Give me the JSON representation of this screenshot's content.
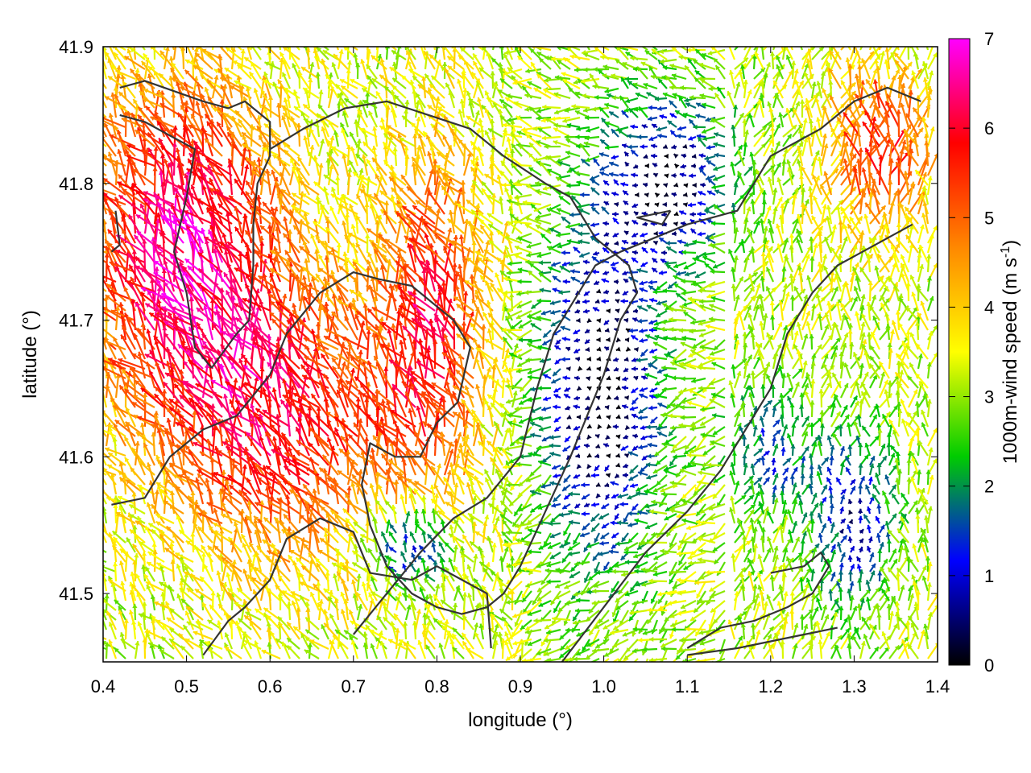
{
  "chart_data": {
    "type": "vector-field",
    "title": "",
    "xlabel": "longitude (°)",
    "ylabel": "latitude (°)",
    "xlim": [
      0.4,
      1.4
    ],
    "ylim": [
      41.45,
      41.9
    ],
    "xticks": [
      "0.4",
      "0.5",
      "0.6",
      "0.7",
      "0.8",
      "0.9",
      "1.0",
      "1.1",
      "1.2",
      "1.3",
      "1.4"
    ],
    "yticks": [
      "41.5",
      "41.6",
      "41.7",
      "41.8",
      "41.9"
    ],
    "colorbar": {
      "label": "1000m-wind speed (m s",
      "label_exponent": "-1",
      "label_close": ")",
      "range": [
        0,
        7
      ],
      "ticks": [
        "0",
        "1",
        "2",
        "3",
        "4",
        "5",
        "6",
        "7"
      ],
      "palette": [
        "#000000",
        "#0000ff",
        "#00cc00",
        "#ffff00",
        "#ff8800",
        "#ff0000",
        "#ff00ff"
      ]
    },
    "grid": false,
    "legend": "none",
    "contours": [
      [
        [
          0.53,
          41.665
        ],
        [
          0.51,
          41.68
        ],
        [
          0.5,
          41.72
        ],
        [
          0.485,
          41.75
        ],
        [
          0.5,
          41.79
        ],
        [
          0.51,
          41.825
        ],
        [
          0.45,
          41.845
        ],
        [
          0.42,
          41.85
        ]
      ],
      [
        [
          0.53,
          41.665
        ],
        [
          0.56,
          41.69
        ],
        [
          0.575,
          41.7
        ],
        [
          0.58,
          41.74
        ],
        [
          0.58,
          41.77
        ],
        [
          0.585,
          41.8
        ],
        [
          0.6,
          41.82
        ],
        [
          0.6,
          41.845
        ],
        [
          0.57,
          41.86
        ],
        [
          0.55,
          41.855
        ],
        [
          0.52,
          41.86
        ],
        [
          0.45,
          41.875
        ],
        [
          0.42,
          41.87
        ]
      ],
      [
        [
          0.41,
          41.75
        ],
        [
          0.42,
          41.755
        ],
        [
          0.415,
          41.78
        ]
      ],
      [
        [
          0.52,
          41.455
        ],
        [
          0.55,
          41.48
        ],
        [
          0.57,
          41.49
        ],
        [
          0.6,
          41.51
        ],
        [
          0.62,
          41.54
        ],
        [
          0.66,
          41.555
        ],
        [
          0.7,
          41.545
        ],
        [
          0.72,
          41.515
        ],
        [
          0.77,
          41.51
        ],
        [
          0.8,
          41.52
        ],
        [
          0.83,
          41.51
        ],
        [
          0.86,
          41.5
        ],
        [
          0.865,
          41.46
        ]
      ],
      [
        [
          0.41,
          41.565
        ],
        [
          0.45,
          41.57
        ],
        [
          0.48,
          41.6
        ],
        [
          0.52,
          41.62
        ],
        [
          0.56,
          41.63
        ],
        [
          0.6,
          41.66
        ],
        [
          0.62,
          41.69
        ],
        [
          0.66,
          41.72
        ],
        [
          0.7,
          41.735
        ],
        [
          0.73,
          41.73
        ],
        [
          0.77,
          41.725
        ],
        [
          0.82,
          41.7
        ],
        [
          0.84,
          41.68
        ],
        [
          0.825,
          41.64
        ],
        [
          0.8,
          41.625
        ],
        [
          0.78,
          41.6
        ],
        [
          0.75,
          41.6
        ],
        [
          0.72,
          41.61
        ],
        [
          0.71,
          41.58
        ],
        [
          0.72,
          41.55
        ],
        [
          0.74,
          41.52
        ],
        [
          0.77,
          41.5
        ],
        [
          0.8,
          41.49
        ],
        [
          0.83,
          41.485
        ],
        [
          0.86,
          41.49
        ],
        [
          0.88,
          41.5
        ],
        [
          0.9,
          41.52
        ],
        [
          0.93,
          41.56
        ],
        [
          0.96,
          41.6
        ],
        [
          0.98,
          41.63
        ],
        [
          1.0,
          41.66
        ],
        [
          1.02,
          41.7
        ],
        [
          1.04,
          41.72
        ],
        [
          1.03,
          41.74
        ],
        [
          0.99,
          41.76
        ],
        [
          0.96,
          41.79
        ],
        [
          0.93,
          41.8
        ],
        [
          0.88,
          41.82
        ],
        [
          0.84,
          41.84
        ],
        [
          0.79,
          41.85
        ],
        [
          0.74,
          41.86
        ],
        [
          0.69,
          41.855
        ],
        [
          0.64,
          41.84
        ],
        [
          0.6,
          41.825
        ]
      ],
      [
        [
          0.7,
          41.47
        ],
        [
          0.74,
          41.5
        ],
        [
          0.78,
          41.53
        ],
        [
          0.82,
          41.555
        ],
        [
          0.86,
          41.57
        ],
        [
          0.9,
          41.6
        ],
        [
          0.92,
          41.65
        ],
        [
          0.94,
          41.69
        ],
        [
          0.97,
          41.72
        ],
        [
          0.99,
          41.74
        ],
        [
          1.02,
          41.75
        ],
        [
          1.06,
          41.76
        ],
        [
          1.1,
          41.77
        ],
        [
          1.13,
          41.775
        ],
        [
          1.16,
          41.78
        ],
        [
          1.18,
          41.8
        ],
        [
          1.2,
          41.82
        ],
        [
          1.23,
          41.83
        ],
        [
          1.26,
          41.84
        ],
        [
          1.3,
          41.86
        ],
        [
          1.34,
          41.87
        ],
        [
          1.38,
          41.86
        ]
      ],
      [
        [
          0.95,
          41.45
        ],
        [
          1.0,
          41.49
        ],
        [
          1.05,
          41.53
        ],
        [
          1.1,
          41.56
        ],
        [
          1.14,
          41.59
        ],
        [
          1.17,
          41.62
        ],
        [
          1.2,
          41.65
        ],
        [
          1.22,
          41.69
        ],
        [
          1.25,
          41.72
        ],
        [
          1.28,
          41.74
        ],
        [
          1.31,
          41.75
        ],
        [
          1.34,
          41.76
        ],
        [
          1.37,
          41.77
        ]
      ],
      [
        [
          1.1,
          41.46
        ],
        [
          1.14,
          41.475
        ],
        [
          1.18,
          41.48
        ],
        [
          1.22,
          41.49
        ],
        [
          1.25,
          41.5
        ],
        [
          1.27,
          41.52
        ],
        [
          1.26,
          41.53
        ],
        [
          1.24,
          41.52
        ],
        [
          1.2,
          41.515
        ]
      ],
      [
        [
          1.1,
          41.455
        ],
        [
          1.16,
          41.46
        ],
        [
          1.2,
          41.465
        ],
        [
          1.24,
          41.47
        ],
        [
          1.28,
          41.475
        ]
      ],
      [
        [
          1.08,
          41.78
        ],
        [
          1.07,
          41.77
        ],
        [
          1.04,
          41.775
        ],
        [
          1.08,
          41.78
        ]
      ]
    ]
  }
}
